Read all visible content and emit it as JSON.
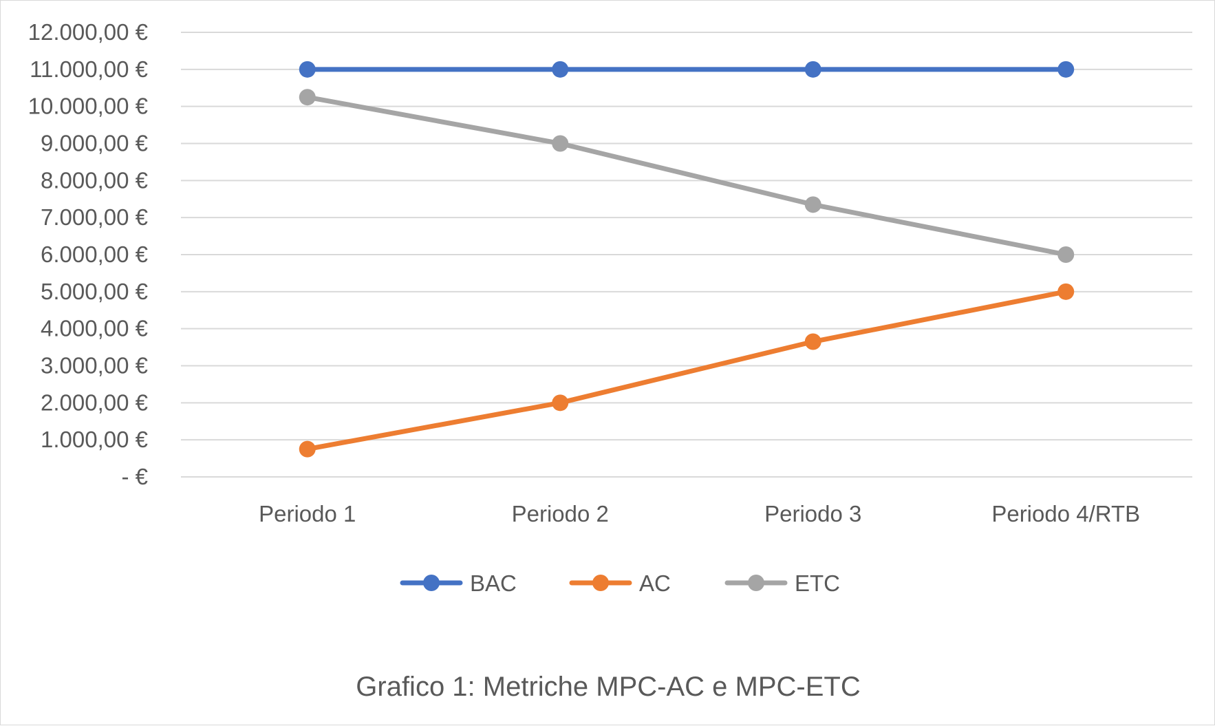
{
  "chart_data": {
    "type": "line",
    "categories": [
      "Periodo 1",
      "Periodo 2",
      "Periodo 3",
      "Periodo 4/RTB"
    ],
    "series": [
      {
        "name": "BAC",
        "values": [
          11000,
          11000,
          11000,
          11000
        ],
        "color": "#4472c4"
      },
      {
        "name": "AC",
        "values": [
          750,
          2000,
          3650,
          5000
        ],
        "color": "#ed7d31"
      },
      {
        "name": "ETC",
        "values": [
          10250,
          9000,
          7350,
          6000
        ],
        "color": "#a5a5a5"
      }
    ],
    "ylim": [
      0,
      12000
    ],
    "ytick_labels": [
      "-   €",
      "1.000,00 €",
      "2.000,00 €",
      "3.000,00 €",
      "4.000,00 €",
      "5.000,00 €",
      "6.000,00 €",
      "7.000,00 €",
      "8.000,00 €",
      "9.000,00 €",
      "10.000,00 €",
      "11.000,00 €",
      "12.000,00 €"
    ],
    "grid": true,
    "legend_position": "bottom"
  },
  "caption": "Grafico 1: Metriche MPC-AC e MPC-ETC"
}
